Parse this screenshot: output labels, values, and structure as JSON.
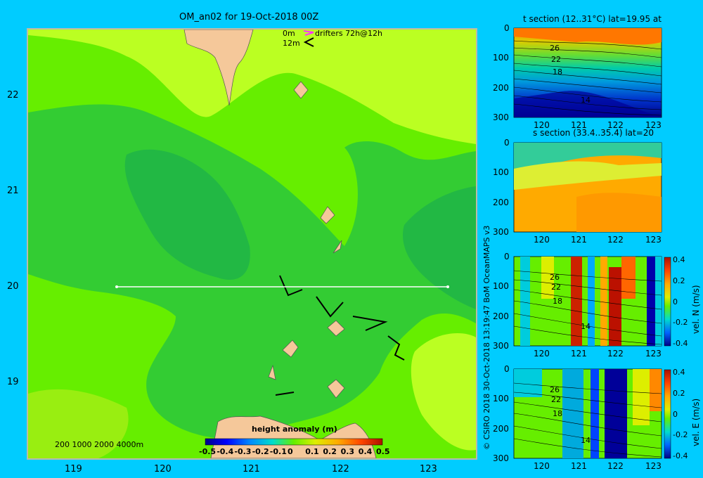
{
  "main_map": {
    "title": "OM_an02 for 19-Oct-2018 00Z",
    "legend": {
      "drifters_0m": "0m",
      "drifters_12m": "12m",
      "drifters_label": "drifters 72h@12h",
      "drifters_color_0m": "#ff33ff",
      "drifters_color_12m": "#000000"
    },
    "x_ticks": [
      "119",
      "120",
      "121",
      "122",
      "123"
    ],
    "y_ticks": [
      "22",
      "21",
      "20",
      "19"
    ],
    "depth_legend": "200  1000  2000  4000m",
    "colorbar": {
      "label": "height anomaly (m)",
      "ticks": [
        "-0.5",
        "-0.4",
        "-0.3",
        "-0.2",
        "-0.1",
        "0",
        "0.1",
        "0.2",
        "0.3",
        "0.4",
        "0.5"
      ],
      "range": [
        -0.5,
        0.5
      ]
    },
    "section_line": {
      "lon_start": 119.5,
      "lon_end": 123.2,
      "lat": 20.0
    },
    "land_color": "#f5c89a",
    "map_colors": {
      "background": "#66ee00",
      "deep": "#33cc33",
      "light": "#bbff22"
    }
  },
  "sections": [
    {
      "title": "t section (12..31°C) lat=19.95 at",
      "y_ticks": [
        "0",
        "100",
        "200",
        "300"
      ],
      "x_ticks": [
        "120",
        "121",
        "122",
        "123"
      ],
      "contour_labels": [
        "26",
        "22",
        "18",
        "14"
      ]
    },
    {
      "title": "s section (33.4..35.4) lat=20",
      "y_ticks": [
        "0",
        "100",
        "200",
        "300"
      ],
      "x_ticks": [
        "120",
        "121",
        "122",
        "123"
      ]
    },
    {
      "title": "",
      "y_ticks": [
        "0",
        "100",
        "200",
        "300"
      ],
      "x_ticks": [
        "120",
        "121",
        "122",
        "123"
      ],
      "contour_labels": [
        "26",
        "22",
        "18",
        "14"
      ],
      "colorbar": {
        "label": "vel. N (m/s)",
        "ticks": [
          "0.4",
          "0.2",
          "0",
          "-0.2",
          "-0.4"
        ]
      }
    },
    {
      "title": "",
      "y_ticks": [
        "0",
        "100",
        "200",
        "300"
      ],
      "x_ticks": [
        "120",
        "121",
        "122",
        "123"
      ],
      "contour_labels": [
        "26",
        "22",
        "18",
        "14"
      ],
      "colorbar": {
        "label": "vel. E (m/s)",
        "ticks": [
          "0.4",
          "0.2",
          "0",
          "-0.2",
          "-0.4"
        ]
      }
    }
  ],
  "credit": "© CSIRO 2018  30-Oct-2018 13:19:47 BoM OceanMAPS v3"
}
